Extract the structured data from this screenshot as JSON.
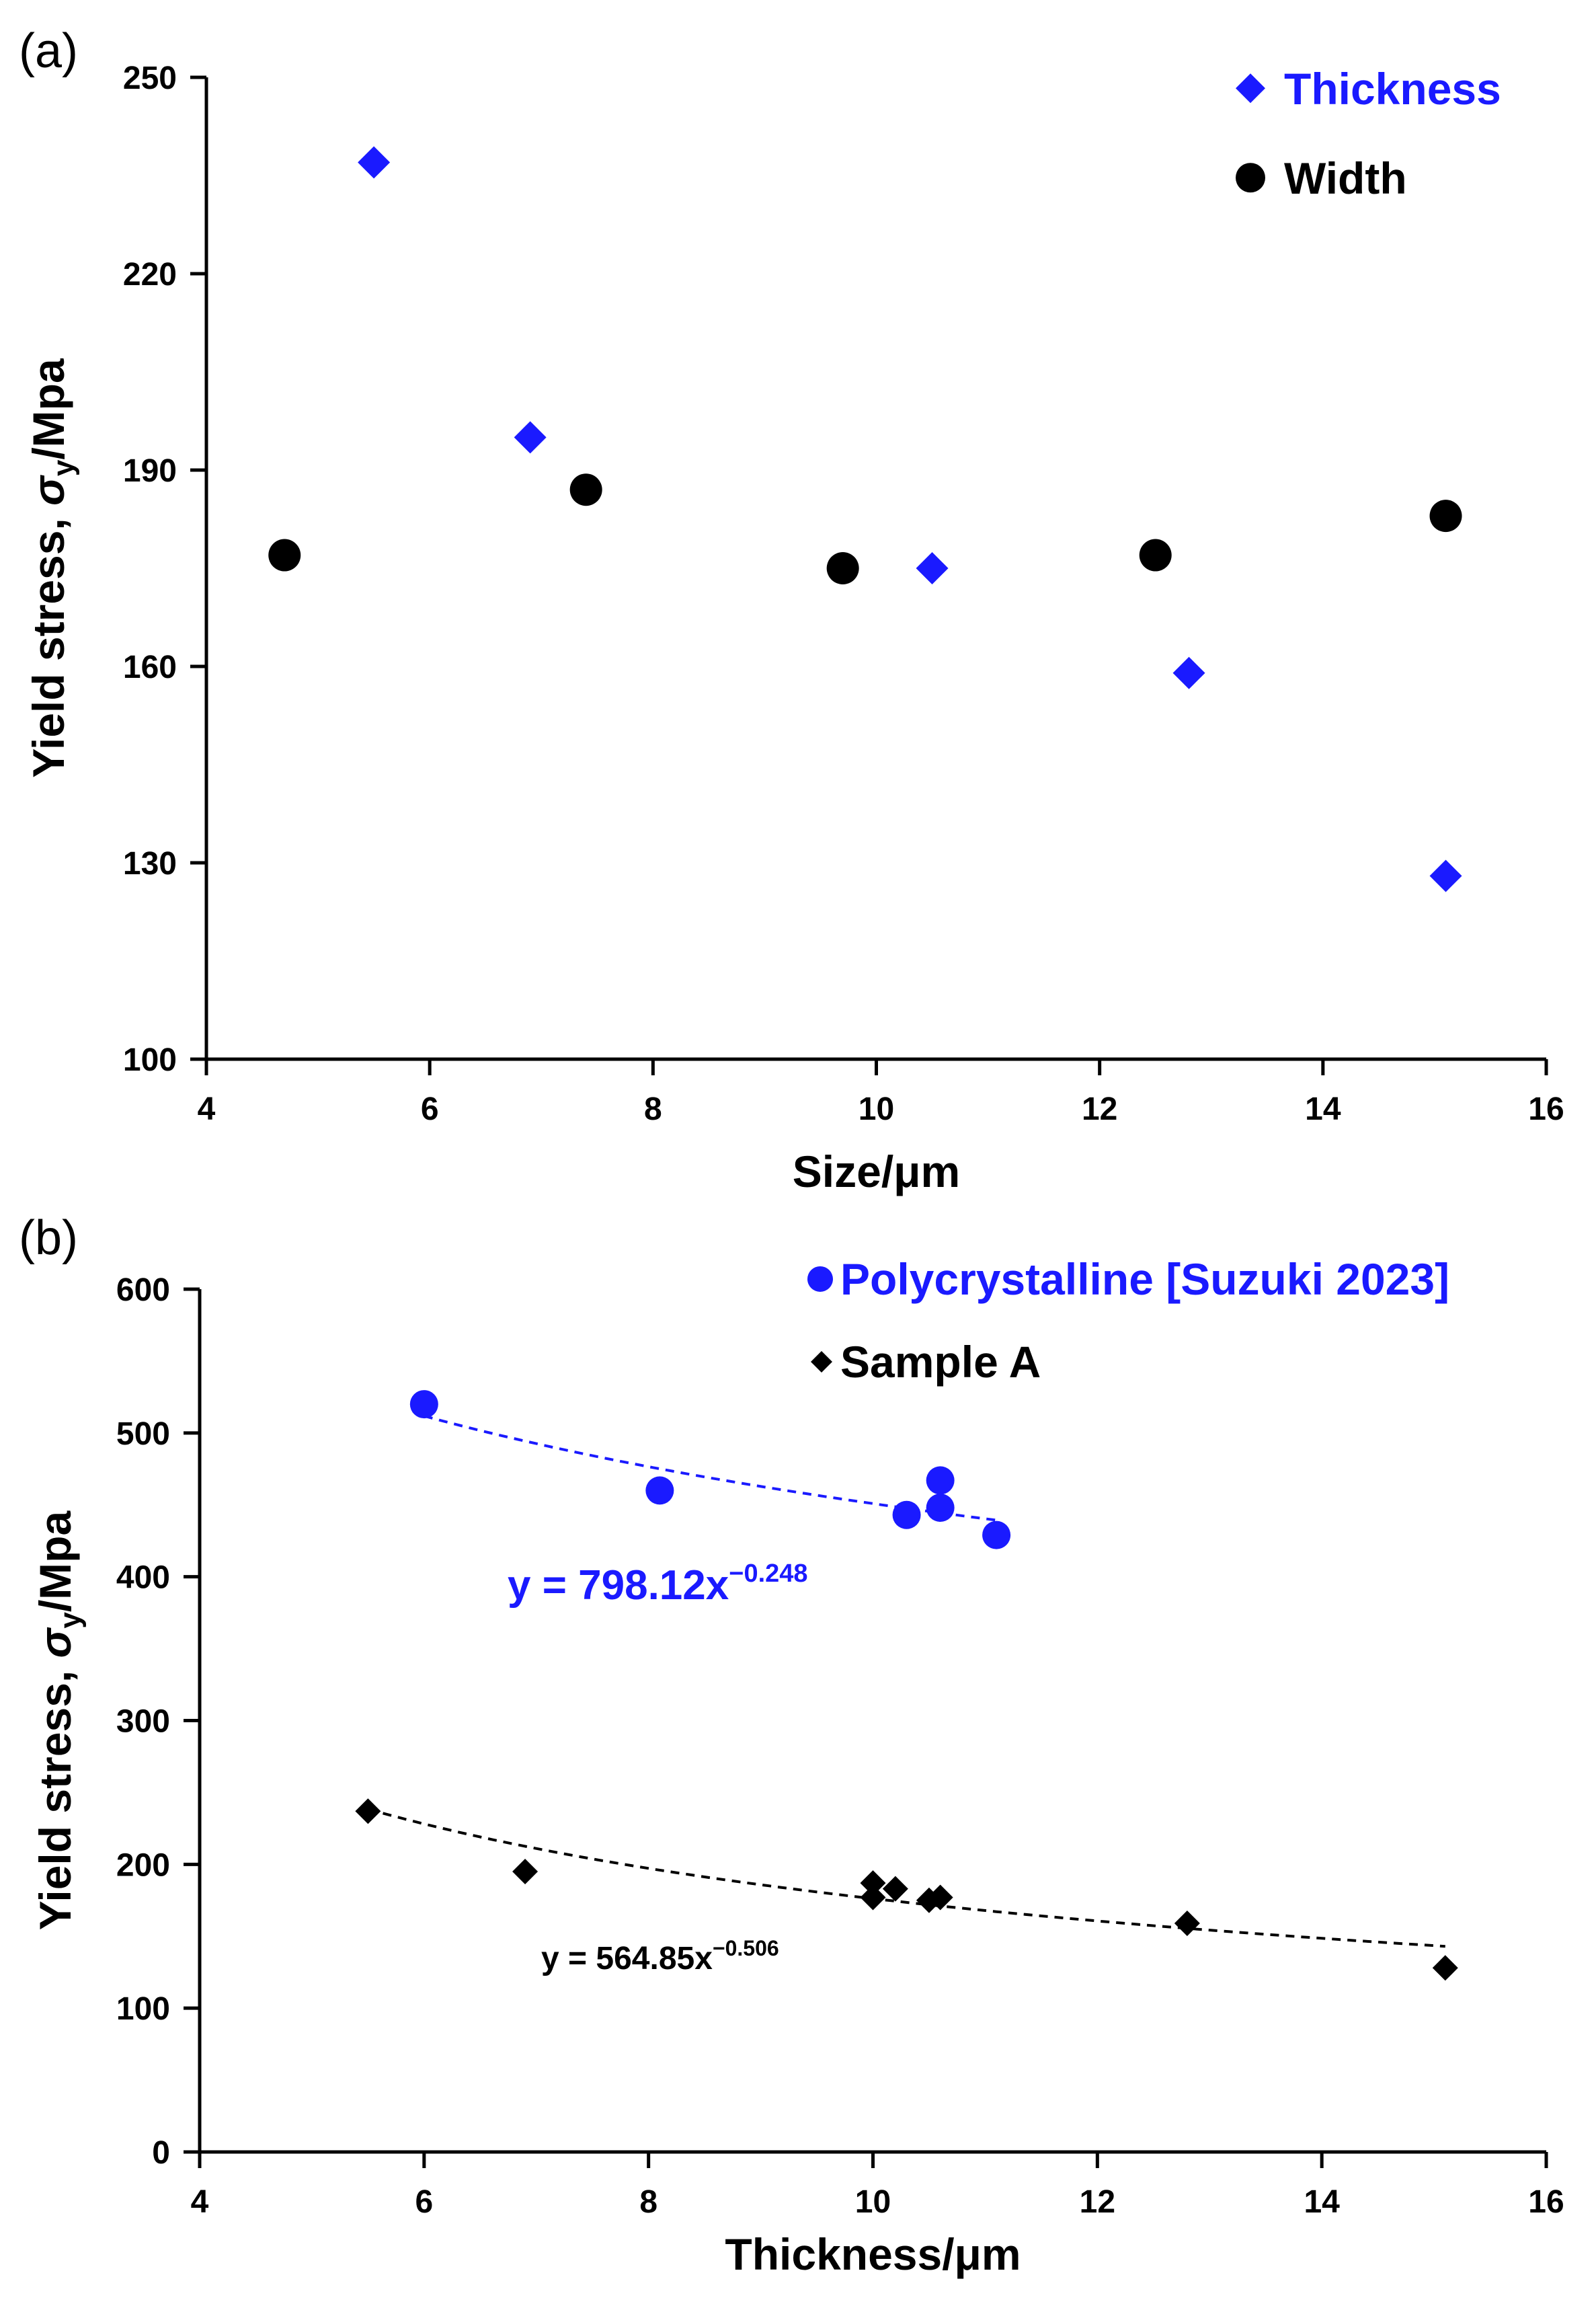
{
  "chart_data": [
    {
      "panel": "(a)",
      "type": "scatter",
      "xlabel": "Size/μm",
      "ylabel": {
        "prefix": "Yield stress, ",
        "sigma": "σ",
        "sub": "y",
        "suffix": "/Mpa"
      },
      "xlim": [
        4,
        16
      ],
      "ylim": [
        100,
        250
      ],
      "xticks": [
        4,
        6,
        8,
        10,
        12,
        14,
        16
      ],
      "yticks": [
        100,
        130,
        160,
        190,
        220,
        250
      ],
      "grid": false,
      "legend_position": "top-right",
      "series": [
        {
          "name": "Thickness",
          "marker": "diamond",
          "color": "#1a1aff",
          "points": [
            [
              5.5,
              237
            ],
            [
              6.9,
              195
            ],
            [
              10.5,
              175
            ],
            [
              12.8,
              159
            ],
            [
              15.1,
              128
            ]
          ]
        },
        {
          "name": "Width",
          "marker": "circle",
          "color": "#000000",
          "points": [
            [
              4.7,
              177
            ],
            [
              7.4,
              187
            ],
            [
              9.7,
              175
            ],
            [
              12.5,
              177
            ],
            [
              15.1,
              183
            ]
          ]
        }
      ]
    },
    {
      "panel": "(b)",
      "type": "scatter",
      "xlabel": "Thickness/μm",
      "ylabel": {
        "prefix": "Yield stress, ",
        "sigma": "σ",
        "sub": "y",
        "suffix": "/Mpa"
      },
      "xlim": [
        4,
        16
      ],
      "ylim": [
        0,
        600
      ],
      "xticks": [
        4,
        6,
        8,
        10,
        12,
        14,
        16
      ],
      "yticks": [
        0,
        100,
        200,
        300,
        400,
        500,
        600
      ],
      "grid": false,
      "legend_position": "top-right",
      "series": [
        {
          "name": "Polycrystalline [Suzuki 2023]",
          "marker": "circle",
          "color": "#1a1aff",
          "points": [
            [
              6.0,
              520
            ],
            [
              8.1,
              460
            ],
            [
              10.3,
              443
            ],
            [
              10.6,
              448
            ],
            [
              10.6,
              467
            ],
            [
              11.1,
              429
            ]
          ],
          "trendline": {
            "coef": 798.12,
            "exp": -0.248,
            "x_range": [
              6.0,
              11.1
            ],
            "label_base": "y = 798.12x",
            "label_exp": "−0.248"
          }
        },
        {
          "name": "Sample A",
          "marker": "diamond",
          "color": "#000000",
          "points": [
            [
              5.5,
              237
            ],
            [
              6.9,
              195
            ],
            [
              10.0,
              187
            ],
            [
              10.0,
              177
            ],
            [
              10.2,
              183
            ],
            [
              10.5,
              175
            ],
            [
              10.6,
              177
            ],
            [
              12.8,
              159
            ],
            [
              15.1,
              128
            ]
          ],
          "trendline": {
            "coef": 564.85,
            "exp": -0.506,
            "x_range": [
              5.5,
              15.1
            ],
            "label_base": "y = 564.85x",
            "label_exp": "−0.506"
          }
        }
      ]
    }
  ]
}
